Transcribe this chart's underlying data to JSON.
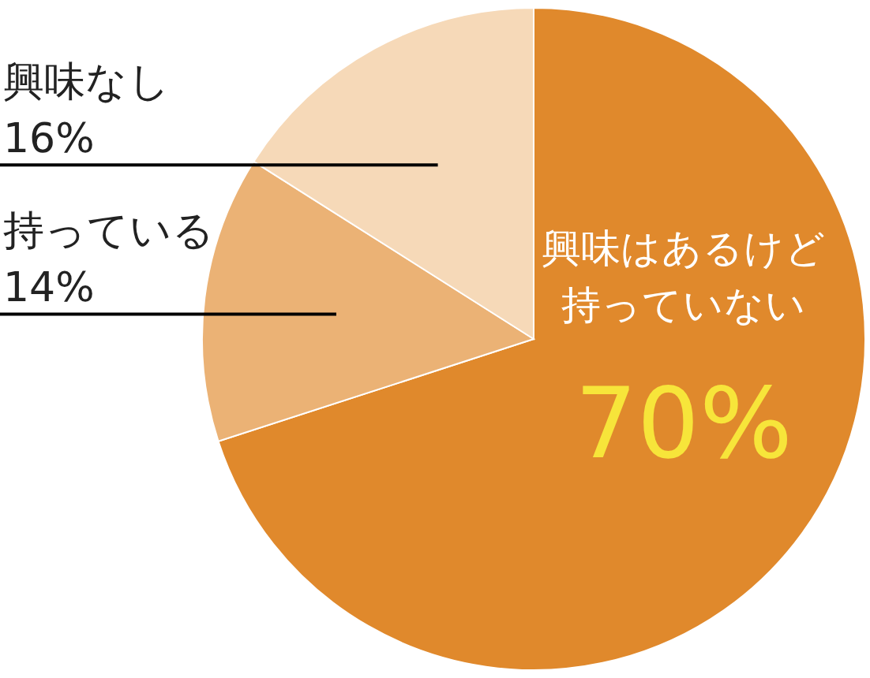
{
  "chart_data": {
    "type": "pie",
    "categories": [
      "興味はあるけど持っていない",
      "持っている",
      "興味なし"
    ],
    "values": [
      70,
      14,
      16
    ],
    "colors": [
      "#e0892c",
      "#ebb275",
      "#f6d9b8"
    ],
    "value_labels": [
      "70%",
      "14%",
      "16%"
    ]
  }
}
